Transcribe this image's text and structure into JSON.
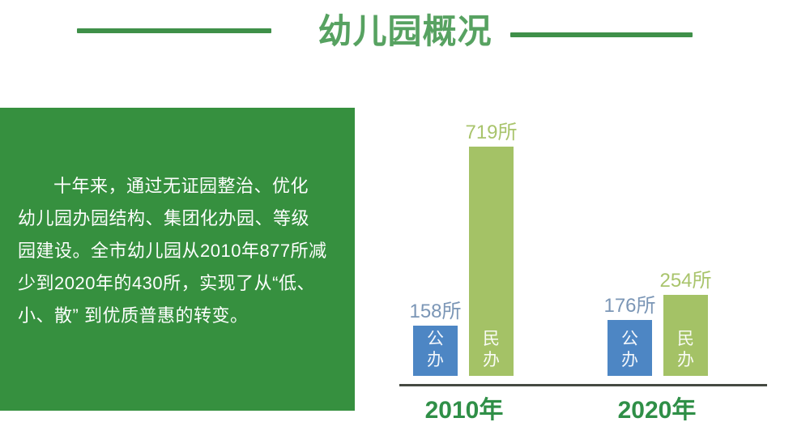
{
  "header": {
    "title": "幼儿园概况"
  },
  "panel": {
    "lines": [
      "十年来，通过无证园整治、优化",
      "幼儿园办园结构、集团化办园、等级",
      "园建设。全市幼儿园从2010年877所减",
      "少到2020年的430所，实现了从“低、",
      "小、散” 到优质普惠的转变。"
    ]
  },
  "chart_data": {
    "type": "bar",
    "title": "",
    "xlabel": "",
    "ylabel": "",
    "categories": [
      "2010年",
      "2020年"
    ],
    "series": [
      {
        "name": "公办",
        "values": [
          158,
          176
        ],
        "color": "#4d86c4"
      },
      {
        "name": "民办",
        "values": [
          719,
          254
        ],
        "color": "#a4c266"
      }
    ],
    "data_labels": [
      [
        "158所",
        "719所"
      ],
      [
        "176所",
        "254所"
      ]
    ],
    "label_colors": [
      "#7b96b6",
      "#a9c46c"
    ],
    "value_unit": "所",
    "ylim": [
      0,
      760
    ],
    "grid": false,
    "legend_position": "inside-bars"
  },
  "colors": {
    "background": "#ffffff",
    "title_green": "#57a261",
    "rule_green": "#3f9049",
    "panel_green": "#36903f",
    "panel_text": "#fdfefd",
    "year_label_green": "#2f8f47",
    "axis_line": "#454a42"
  }
}
